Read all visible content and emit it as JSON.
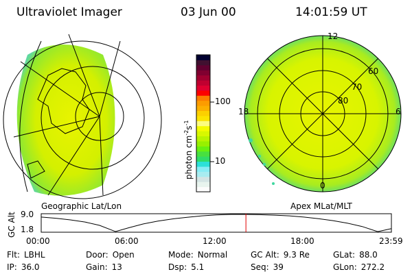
{
  "header": {
    "instrument": "Ultraviolet Imager",
    "date": "03 Jun 00",
    "time": "14:01:59 UT"
  },
  "panels": {
    "left_label": "Geographic Lat/Lon",
    "right_label": "Apex MLat/MLT"
  },
  "polar": {
    "mlt_labels": [
      "12",
      "6",
      "0",
      "18"
    ],
    "lat_labels": [
      "60",
      "70",
      "80"
    ]
  },
  "colorbar": {
    "label": "photon cm",
    "exp1": "-2",
    "unit2": "s",
    "exp2": "-1",
    "ticks": [
      "100",
      "10"
    ],
    "colors": [
      "#fcfcfc",
      "#e8f4ee",
      "#d4e4e4",
      "#a8ecf0",
      "#88ecf4",
      "#2ce0d8",
      "#30dc68",
      "#48e040",
      "#68f010",
      "#98f000",
      "#b8f400",
      "#d8f800",
      "#f4fc00",
      "#fcfc80",
      "#fce400",
      "#fcd000",
      "#fcb000",
      "#fc9c00",
      "#fc7c00",
      "#fc0000",
      "#e00030",
      "#c00030",
      "#a00030",
      "#800030",
      "#600030",
      "#401030",
      "#000030"
    ]
  },
  "chart_data": {
    "type": "line",
    "ylabel": "GC Alt",
    "ytick_labels": [
      "9.0",
      "1.8"
    ],
    "ylim": [
      1.8,
      9.3
    ],
    "xtick_labels": [
      "00:00",
      "06:00",
      "12:00",
      "18:00",
      "23:59"
    ],
    "xlim": [
      0,
      24
    ],
    "current_time_hours": 14.03,
    "x": [
      0,
      1,
      2,
      3,
      4,
      5,
      5.1,
      6,
      7,
      8,
      9,
      10,
      11,
      12,
      13,
      13.5,
      14,
      15,
      16,
      17,
      18,
      19,
      20,
      21,
      22,
      23,
      23.1,
      24
    ],
    "y": [
      7.9,
      7.4,
      6.7,
      5.8,
      4.4,
      2.0,
      1.8,
      3.4,
      5.0,
      6.2,
      7.1,
      7.8,
      8.4,
      8.8,
      9.0,
      9.0,
      9.0,
      8.9,
      8.7,
      8.4,
      7.9,
      7.2,
      6.4,
      5.3,
      3.9,
      1.9,
      1.8,
      3.0
    ]
  },
  "status": [
    {
      "label": "Flt:",
      "value": "LBHL"
    },
    {
      "label": "Door:",
      "value": "Open"
    },
    {
      "label": "Mode:",
      "value": "Normal"
    },
    {
      "label": "GC Alt:",
      "value": "9.3 Re"
    },
    {
      "label": "GLat:",
      "value": "88.0"
    },
    {
      "label": "IP:",
      "value": "36.0"
    },
    {
      "label": "Gain:",
      "value": "13"
    },
    {
      "label": "Dsp:",
      "value": "5.1"
    },
    {
      "label": "Seq:",
      "value": "39"
    },
    {
      "label": "GLon:",
      "value": "272.2"
    }
  ]
}
